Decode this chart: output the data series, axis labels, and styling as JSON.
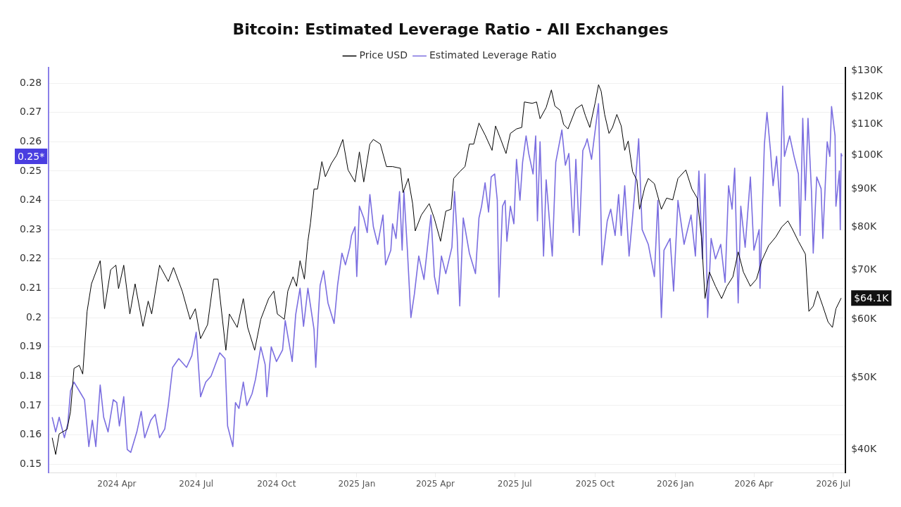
{
  "chart_data": {
    "type": "line",
    "title": "Bitcoin: Estimated Leverage Ratio - All Exchanges",
    "legend": "top",
    "grid": "y",
    "log": "y2",
    "marker": "none",
    "line_style": "solid",
    "annotations": [
      "$64.1K",
      "0.25*"
    ],
    "xlim": [
      "2024-01-14",
      "2026-07-15"
    ],
    "xticks": [
      {
        "value": "2024-04-01",
        "label": "2024 Apr"
      },
      {
        "value": "2024-07-01",
        "label": "2024 Jul"
      },
      {
        "value": "2024-10-01",
        "label": "2024 Oct"
      },
      {
        "value": "2025-01-01",
        "label": "2025 Jan"
      },
      {
        "value": "2025-04-01",
        "label": "2025 Apr"
      },
      {
        "value": "2025-07-01",
        "label": "2025 Jul"
      },
      {
        "value": "2025-10-01",
        "label": "2025 Oct"
      },
      {
        "value": "2026-01-01",
        "label": "2026 Jan"
      },
      {
        "value": "2026-04-01",
        "label": "2026 Apr"
      },
      {
        "value": "2026-07-01",
        "label": "2026 Jul"
      }
    ],
    "ylim": [
      0.147,
      0.2852
    ],
    "yticks": [
      0.15,
      0.16,
      0.17,
      0.18,
      0.19,
      0.2,
      0.21,
      0.22,
      0.23,
      0.24,
      0.25,
      0.26,
      0.27,
      0.28
    ],
    "y2lim": [
      37200,
      131200
    ],
    "y2ticks": [
      {
        "value": 40000,
        "label": "$40K"
      },
      {
        "value": 50000,
        "label": "$50K"
      },
      {
        "value": 60000,
        "label": "$60K"
      },
      {
        "value": 70000,
        "label": "$70K"
      },
      {
        "value": 80000,
        "label": "$80K"
      },
      {
        "value": 90000,
        "label": "$90K"
      },
      {
        "value": 100000,
        "label": "$100K"
      },
      {
        "value": 110000,
        "label": "$110K"
      },
      {
        "value": 120000,
        "label": "$120K"
      },
      {
        "value": 130000,
        "label": "$130K"
      }
    ],
    "series": [
      {
        "name": "Price USD",
        "color": "#000000",
        "axis": "y2",
        "x": [
          "2024-01-18",
          "2024-01-22",
          "2024-01-26",
          "2024-02-04",
          "2024-02-08",
          "2024-02-12",
          "2024-02-18",
          "2024-02-22",
          "2024-02-27",
          "2024-03-03",
          "2024-03-13",
          "2024-03-18",
          "2024-03-25",
          "2024-03-31",
          "2024-04-03",
          "2024-04-09",
          "2024-04-16",
          "2024-04-22",
          "2024-05-01",
          "2024-05-07",
          "2024-05-11",
          "2024-05-20",
          "2024-05-30",
          "2024-06-05",
          "2024-06-15",
          "2024-06-24",
          "2024-06-30",
          "2024-07-06",
          "2024-07-14",
          "2024-07-21",
          "2024-07-26",
          "2024-08-04",
          "2024-08-08",
          "2024-08-17",
          "2024-08-24",
          "2024-08-29",
          "2024-09-06",
          "2024-09-13",
          "2024-09-22",
          "2024-09-28",
          "2024-10-02",
          "2024-10-10",
          "2024-10-14",
          "2024-10-20",
          "2024-10-24",
          "2024-10-28",
          "2024-11-02",
          "2024-11-06",
          "2024-11-09",
          "2024-11-13",
          "2024-11-17",
          "2024-11-22",
          "2024-11-26",
          "2024-12-03",
          "2024-12-09",
          "2024-12-16",
          "2024-12-22",
          "2024-12-30",
          "2025-01-04",
          "2025-01-09",
          "2025-01-16",
          "2025-01-20",
          "2025-01-28",
          "2025-02-04",
          "2025-02-11",
          "2025-02-20",
          "2025-02-23",
          "2025-03-01",
          "2025-03-06",
          "2025-03-09",
          "2025-03-16",
          "2025-03-25",
          "2025-03-31",
          "2025-04-07",
          "2025-04-13",
          "2025-04-19",
          "2025-04-22",
          "2025-04-29",
          "2025-05-05",
          "2025-05-10",
          "2025-05-15",
          "2025-05-21",
          "2025-05-28",
          "2025-06-05",
          "2025-06-09",
          "2025-06-15",
          "2025-06-21",
          "2025-06-26",
          "2025-07-03",
          "2025-07-09",
          "2025-07-12",
          "2025-07-21",
          "2025-07-26",
          "2025-07-30",
          "2025-08-06",
          "2025-08-12",
          "2025-08-16",
          "2025-08-22",
          "2025-08-26",
          "2025-08-31",
          "2025-09-09",
          "2025-09-16",
          "2025-09-20",
          "2025-09-25",
          "2025-10-01",
          "2025-10-05",
          "2025-10-08",
          "2025-10-12",
          "2025-10-17",
          "2025-10-21",
          "2025-10-26",
          "2025-10-31",
          "2025-11-04",
          "2025-11-08",
          "2025-11-13",
          "2025-11-18",
          "2025-11-21",
          "2025-11-27",
          "2025-12-01",
          "2025-12-08",
          "2025-12-16",
          "2025-12-22",
          "2025-12-29",
          "2026-01-04",
          "2026-01-13",
          "2026-01-20",
          "2026-01-26",
          "2026-01-31",
          "2026-02-04",
          "2026-02-09",
          "2026-02-16",
          "2026-02-23",
          "2026-03-01",
          "2026-03-08",
          "2026-03-14",
          "2026-03-20",
          "2026-03-28",
          "2026-04-04",
          "2026-04-10",
          "2026-04-18",
          "2026-04-26",
          "2026-05-03",
          "2026-05-10",
          "2026-05-15",
          "2026-05-22",
          "2026-05-30",
          "2026-06-03",
          "2026-06-08",
          "2026-06-13",
          "2026-06-19",
          "2026-06-25",
          "2026-06-30",
          "2026-07-04",
          "2026-07-10"
        ],
        "values": [
          41500,
          39400,
          42000,
          42600,
          45000,
          51500,
          52000,
          50600,
          61500,
          67000,
          72000,
          62000,
          70000,
          71000,
          66000,
          71000,
          61000,
          67000,
          58700,
          63500,
          61000,
          71000,
          67500,
          70500,
          65500,
          60000,
          62000,
          56500,
          59000,
          68000,
          68000,
          54500,
          61000,
          58500,
          64000,
          58500,
          54500,
          60000,
          64000,
          65500,
          61000,
          60000,
          65500,
          68500,
          66500,
          72000,
          68000,
          76500,
          81000,
          90000,
          90000,
          98000,
          93500,
          97500,
          100000,
          105000,
          95500,
          92000,
          101000,
          92000,
          103500,
          105000,
          103500,
          96500,
          96500,
          96000,
          89000,
          93000,
          86000,
          79000,
          83000,
          86000,
          82000,
          76500,
          84000,
          84500,
          93000,
          95000,
          96500,
          103500,
          103500,
          110500,
          106500,
          101500,
          109500,
          105000,
          100500,
          107000,
          108500,
          109000,
          118000,
          117500,
          118000,
          112000,
          116000,
          122500,
          116500,
          115000,
          110000,
          108500,
          115500,
          117000,
          113000,
          109000,
          117500,
          124500,
          122000,
          113500,
          107000,
          109000,
          113500,
          109500,
          101500,
          104500,
          95000,
          92500,
          84500,
          90500,
          93000,
          91500,
          84500,
          87500,
          87000,
          93000,
          95500,
          90000,
          87500,
          77500,
          64000,
          69500,
          66500,
          64000,
          66500,
          68500,
          74000,
          69500,
          66500,
          68000,
          72000,
          75500,
          77500,
          80000,
          81500,
          79500,
          76500,
          73500,
          61500,
          62500,
          65500,
          62500,
          59500,
          58500,
          62000,
          64100
        ]
      },
      {
        "name": "Estimated Leverage Ratio",
        "color": "#7b6ee0",
        "x": [
          "2024-01-18",
          "2024-01-22",
          "2024-01-26",
          "2024-02-01",
          "2024-02-05",
          "2024-02-08",
          "2024-02-12",
          "2024-02-20",
          "2024-02-24",
          "2024-02-29",
          "2024-03-04",
          "2024-03-08",
          "2024-03-13",
          "2024-03-17",
          "2024-03-22",
          "2024-03-28",
          "2024-04-01",
          "2024-04-04",
          "2024-04-09",
          "2024-04-13",
          "2024-04-17",
          "2024-04-24",
          "2024-04-29",
          "2024-05-03",
          "2024-05-10",
          "2024-05-15",
          "2024-05-20",
          "2024-05-26",
          "2024-05-30",
          "2024-06-04",
          "2024-06-11",
          "2024-06-20",
          "2024-06-26",
          "2024-07-01",
          "2024-07-06",
          "2024-07-12",
          "2024-07-18",
          "2024-07-28",
          "2024-08-03",
          "2024-08-06",
          "2024-08-12",
          "2024-08-15",
          "2024-08-19",
          "2024-08-24",
          "2024-08-28",
          "2024-09-03",
          "2024-09-07",
          "2024-09-13",
          "2024-09-18",
          "2024-09-20",
          "2024-09-25",
          "2024-10-01",
          "2024-10-08",
          "2024-10-11",
          "2024-10-15",
          "2024-10-19",
          "2024-10-23",
          "2024-10-28",
          "2024-11-01",
          "2024-11-06",
          "2024-11-13",
          "2024-11-15",
          "2024-11-18",
          "2024-11-20",
          "2024-11-24",
          "2024-11-29",
          "2024-12-03",
          "2024-12-06",
          "2024-12-10",
          "2024-12-15",
          "2024-12-19",
          "2024-12-24",
          "2024-12-26",
          "2024-12-30",
          "2025-01-01",
          "2025-01-04",
          "2025-01-09",
          "2025-01-13",
          "2025-01-16",
          "2025-01-20",
          "2025-01-25",
          "2025-01-31",
          "2025-02-03",
          "2025-02-09",
          "2025-02-11",
          "2025-02-15",
          "2025-02-19",
          "2025-02-22",
          "2025-02-24",
          "2025-02-28",
          "2025-03-04",
          "2025-03-08",
          "2025-03-13",
          "2025-03-19",
          "2025-03-23",
          "2025-03-27",
          "2025-03-31",
          "2025-04-04",
          "2025-04-08",
          "2025-04-13",
          "2025-04-20",
          "2025-04-23",
          "2025-04-26",
          "2025-04-29",
          "2025-05-03",
          "2025-05-10",
          "2025-05-14",
          "2025-05-17",
          "2025-05-21",
          "2025-05-24",
          "2025-05-28",
          "2025-06-01",
          "2025-06-04",
          "2025-06-08",
          "2025-06-11",
          "2025-06-13",
          "2025-06-17",
          "2025-06-20",
          "2025-06-22",
          "2025-06-26",
          "2025-06-30",
          "2025-07-03",
          "2025-07-07",
          "2025-07-10",
          "2025-07-14",
          "2025-07-17",
          "2025-07-22",
          "2025-07-25",
          "2025-07-27",
          "2025-07-30",
          "2025-08-03",
          "2025-08-06",
          "2025-08-13",
          "2025-08-17",
          "2025-08-24",
          "2025-08-28",
          "2025-09-01",
          "2025-09-06",
          "2025-09-09",
          "2025-09-13",
          "2025-09-17",
          "2025-09-20",
          "2025-09-22",
          "2025-09-27",
          "2025-10-05",
          "2025-10-09",
          "2025-10-15",
          "2025-10-19",
          "2025-10-24",
          "2025-10-28",
          "2025-10-31",
          "2025-11-04",
          "2025-11-09",
          "2025-11-15",
          "2025-11-20",
          "2025-11-24",
          "2025-12-01",
          "2025-12-08",
          "2025-12-12",
          "2025-12-16",
          "2025-12-19",
          "2025-12-26",
          "2025-12-30",
          "2026-01-04",
          "2026-01-11",
          "2026-01-19",
          "2026-01-24",
          "2026-01-28",
          "2026-02-01",
          "2026-02-04",
          "2026-02-07",
          "2026-02-11",
          "2026-02-16",
          "2026-02-22",
          "2026-02-27",
          "2026-03-03",
          "2026-03-07",
          "2026-03-10",
          "2026-03-14",
          "2026-03-17",
          "2026-03-22",
          "2026-03-28",
          "2026-04-01",
          "2026-04-07",
          "2026-04-08",
          "2026-04-13",
          "2026-04-16",
          "2026-04-20",
          "2026-04-23",
          "2026-04-27",
          "2026-05-01",
          "2026-05-04",
          "2026-05-06",
          "2026-05-12",
          "2026-05-17",
          "2026-05-22",
          "2026-05-24",
          "2026-05-27",
          "2026-05-30",
          "2026-06-02",
          "2026-06-06",
          "2026-06-08",
          "2026-06-12",
          "2026-06-17",
          "2026-06-19",
          "2026-06-24",
          "2026-06-27",
          "2026-06-29",
          "2026-07-03",
          "2026-07-04",
          "2026-07-08",
          "2026-07-09",
          "2026-07-10",
          "2026-07-11"
        ],
        "values": [
          0.166,
          0.161,
          0.166,
          0.159,
          0.164,
          0.175,
          0.178,
          0.174,
          0.172,
          0.156,
          0.165,
          0.156,
          0.177,
          0.166,
          0.161,
          0.172,
          0.171,
          0.163,
          0.173,
          0.155,
          0.154,
          0.161,
          0.168,
          0.159,
          0.165,
          0.167,
          0.159,
          0.162,
          0.17,
          0.183,
          0.186,
          0.183,
          0.187,
          0.195,
          0.173,
          0.178,
          0.18,
          0.188,
          0.186,
          0.163,
          0.156,
          0.171,
          0.169,
          0.178,
          0.17,
          0.174,
          0.179,
          0.19,
          0.184,
          0.173,
          0.19,
          0.185,
          0.189,
          0.199,
          0.192,
          0.185,
          0.201,
          0.21,
          0.197,
          0.21,
          0.196,
          0.183,
          0.201,
          0.211,
          0.216,
          0.205,
          0.201,
          0.198,
          0.211,
          0.222,
          0.218,
          0.224,
          0.228,
          0.231,
          0.214,
          0.238,
          0.234,
          0.229,
          0.242,
          0.231,
          0.225,
          0.235,
          0.218,
          0.223,
          0.232,
          0.227,
          0.243,
          0.223,
          0.243,
          0.223,
          0.2,
          0.208,
          0.221,
          0.213,
          0.224,
          0.235,
          0.214,
          0.208,
          0.221,
          0.215,
          0.224,
          0.243,
          0.228,
          0.204,
          0.234,
          0.222,
          0.218,
          0.215,
          0.234,
          0.238,
          0.246,
          0.236,
          0.248,
          0.249,
          0.24,
          0.207,
          0.238,
          0.24,
          0.226,
          0.238,
          0.232,
          0.254,
          0.24,
          0.253,
          0.262,
          0.256,
          0.249,
          0.262,
          0.233,
          0.26,
          0.221,
          0.247,
          0.221,
          0.253,
          0.264,
          0.252,
          0.256,
          0.229,
          0.254,
          0.228,
          0.257,
          0.259,
          0.261,
          0.254,
          0.273,
          0.218,
          0.233,
          0.237,
          0.228,
          0.242,
          0.228,
          0.245,
          0.221,
          0.241,
          0.261,
          0.23,
          0.225,
          0.214,
          0.24,
          0.2,
          0.223,
          0.227,
          0.209,
          0.24,
          0.225,
          0.235,
          0.221,
          0.25,
          0.22,
          0.249,
          0.2,
          0.227,
          0.22,
          0.225,
          0.212,
          0.245,
          0.237,
          0.251,
          0.205,
          0.238,
          0.224,
          0.248,
          0.223,
          0.23,
          0.21,
          0.259,
          0.27,
          0.257,
          0.245,
          0.255,
          0.238,
          0.279,
          0.255,
          0.262,
          0.255,
          0.249,
          0.228,
          0.268,
          0.24,
          0.268,
          0.243,
          0.222,
          0.248,
          0.244,
          0.227,
          0.26,
          0.255,
          0.272,
          0.262,
          0.238,
          0.25,
          0.23,
          0.256,
          0.255
        ]
      }
    ]
  }
}
